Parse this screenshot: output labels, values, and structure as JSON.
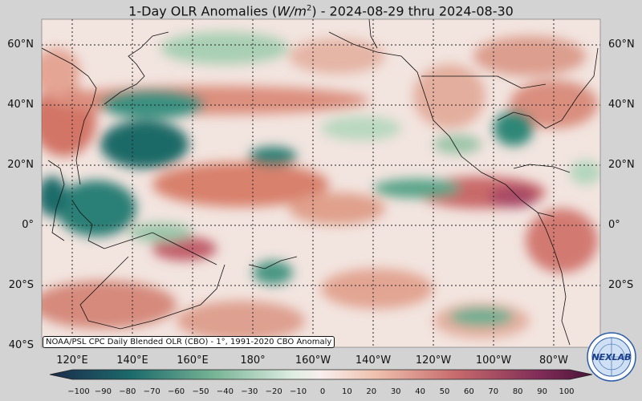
{
  "title": {
    "prefix": "1-Day OLR Anomalies (",
    "unit_base": "W/m",
    "unit_exp": "2",
    "suffix": ") - 2024-08-29 thru 2024-08-30"
  },
  "credit_text": "NOAA/PSL CPC Daily Blended OLR (CBO) - 1°, 1991-2020 CBO Anomaly",
  "lat_labels": [
    "60°N",
    "40°N",
    "20°N",
    "0°",
    "20°S",
    "40°S"
  ],
  "lon_labels": [
    "120°E",
    "140°E",
    "160°E",
    "180°",
    "160°W",
    "140°W",
    "120°W",
    "100°W",
    "80°W"
  ],
  "colorbar": {
    "ticks": [
      "−100",
      "−90",
      "−80",
      "−70",
      "−60",
      "−50",
      "−40",
      "−30",
      "−20",
      "−10",
      "0",
      "10",
      "20",
      "30",
      "40",
      "50",
      "60",
      "70",
      "80",
      "90",
      "100"
    ],
    "colors": [
      "#1b2b4a",
      "#1d4a5c",
      "#1c6a6b",
      "#1f8077",
      "#2e8e7e",
      "#4e9e86",
      "#75b394",
      "#9ac8a8",
      "#bfdcc3",
      "#e0ede3",
      "#f8efee",
      "#f6dccf",
      "#efc1ae",
      "#e3a290",
      "#d5857a",
      "#c66a6c",
      "#b45266",
      "#9c3e61",
      "#812d58",
      "#5f1d47"
    ]
  },
  "logo_text": "NEXLAB",
  "map_colors": {
    "positive": "#d8816d",
    "negative": "#2f8777",
    "neutral": "#f5ebe6",
    "land": "#111111",
    "grid": "#222222"
  }
}
